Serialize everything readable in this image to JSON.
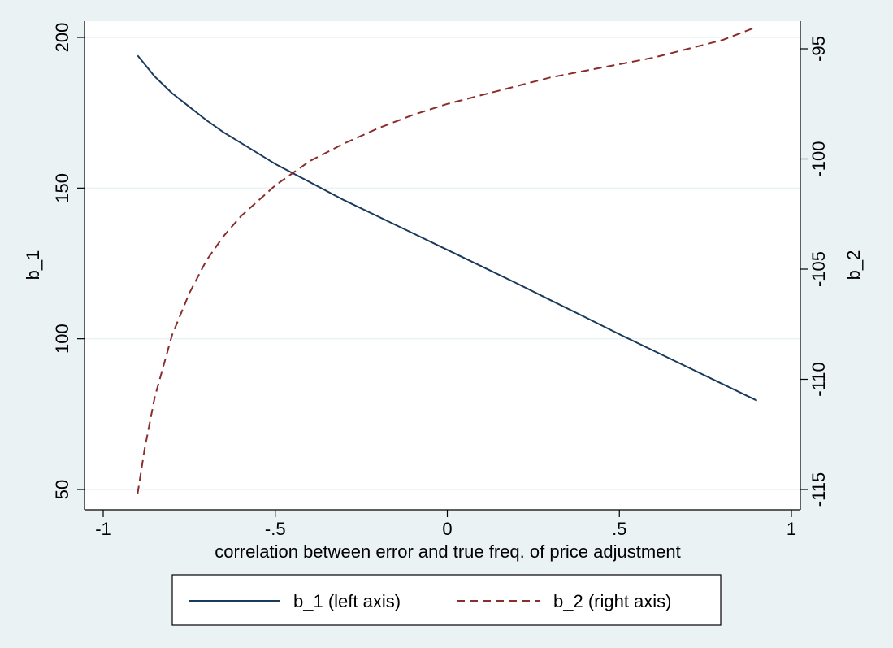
{
  "chart_data": {
    "type": "line",
    "xlabel": "correlation between error and true freq. of price adjustment",
    "ylabel_left": "b_1",
    "ylabel_right": "b_2",
    "xlim": [
      -1,
      1
    ],
    "ylim_left": [
      50,
      200
    ],
    "ylim_right": [
      -115,
      -95
    ],
    "x_ticks": [
      {
        "value": -1,
        "label": "-1"
      },
      {
        "value": -0.5,
        "label": "-.5"
      },
      {
        "value": 0,
        "label": "0"
      },
      {
        "value": 0.5,
        "label": ".5"
      },
      {
        "value": 1,
        "label": "1"
      }
    ],
    "y_left_ticks": [
      {
        "value": 50,
        "label": "50"
      },
      {
        "value": 100,
        "label": "100"
      },
      {
        "value": 150,
        "label": "150"
      },
      {
        "value": 200,
        "label": "200"
      }
    ],
    "y_right_ticks": [
      {
        "value": -95,
        "label": "-95"
      },
      {
        "value": -100,
        "label": "-100"
      },
      {
        "value": -105,
        "label": "-105"
      },
      {
        "value": -110,
        "label": "-110"
      },
      {
        "value": -115,
        "label": "-115"
      }
    ],
    "gridlines": "horizontal",
    "legend_position": "bottom",
    "series": [
      {
        "name": "b_1 (left axis)",
        "axis": "left",
        "color": "#1a3a5c",
        "dash": "solid",
        "x": [
          -0.9,
          -0.85,
          -0.8,
          -0.75,
          -0.7,
          -0.65,
          -0.6,
          -0.5,
          -0.4,
          -0.3,
          -0.2,
          -0.1,
          0,
          0.1,
          0.2,
          0.3,
          0.4,
          0.5,
          0.6,
          0.7,
          0.8,
          0.9
        ],
        "y": [
          194,
          187,
          181.5,
          177,
          172.5,
          168.5,
          165,
          158,
          152,
          146,
          140.5,
          135,
          129.5,
          124,
          118.5,
          112.8,
          107.2,
          101.5,
          96,
          90.5,
          85,
          79.5
        ]
      },
      {
        "name": "b_2 (right axis)",
        "axis": "right",
        "color": "#8b2d2d",
        "dash": "dashed",
        "x": [
          -0.9,
          -0.88,
          -0.85,
          -0.8,
          -0.75,
          -0.7,
          -0.65,
          -0.6,
          -0.5,
          -0.4,
          -0.3,
          -0.2,
          -0.1,
          0,
          0.1,
          0.2,
          0.3,
          0.4,
          0.5,
          0.6,
          0.7,
          0.8,
          0.9
        ],
        "y": [
          -115.2,
          -113.2,
          -110.8,
          -108,
          -106.1,
          -104.6,
          -103.5,
          -102.6,
          -101.2,
          -100.1,
          -99.3,
          -98.6,
          -98.0,
          -97.5,
          -97.1,
          -96.7,
          -96.3,
          -96.0,
          -95.7,
          -95.4,
          -95.0,
          -94.6,
          -94.0
        ]
      }
    ]
  }
}
